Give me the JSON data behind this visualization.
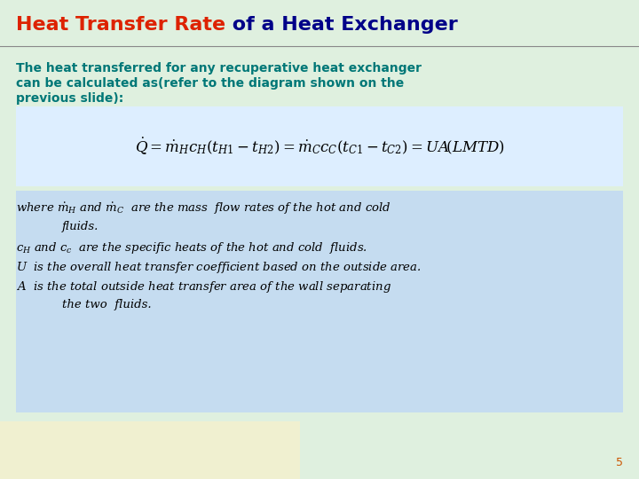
{
  "bg_color": "#dff0df",
  "title_part1": "Heat Transfer Rate",
  "title_part1_color": "#dd2200",
  "title_part2": " of a Heat Exchanger",
  "title_part2_color": "#000088",
  "title_fontsize": 16,
  "subtitle_color": "#007777",
  "subtitle_fontsize": 10,
  "subtitle_lines": [
    "The heat transferred for any recuperative heat exchanger",
    "can be calculated as(refer to the diagram shown on the",
    "previous slide):"
  ],
  "equation_box_color": "#ddeeff",
  "desc_box_color": "#c5dcf0",
  "slide_number": "5",
  "slide_number_color": "#cc5500",
  "bottom_left_color": "#f0f0d0",
  "bottom_right_color": "#dff0df"
}
